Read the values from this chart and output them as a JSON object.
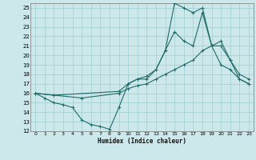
{
  "xlabel": "Humidex (Indice chaleur)",
  "bg_color": "#cce8ea",
  "line_color": "#1e6b6b",
  "grid_color": "#9ecdd0",
  "xlim": [
    -0.5,
    23.5
  ],
  "ylim": [
    12,
    25.5
  ],
  "xticks": [
    0,
    1,
    2,
    3,
    4,
    5,
    6,
    7,
    8,
    9,
    10,
    11,
    12,
    13,
    14,
    15,
    16,
    17,
    18,
    19,
    20,
    21,
    22,
    23
  ],
  "yticks": [
    12,
    13,
    14,
    15,
    16,
    17,
    18,
    19,
    20,
    21,
    22,
    23,
    24,
    25
  ],
  "line1_x": [
    0,
    1,
    2,
    3,
    4,
    5,
    6,
    7,
    8,
    9,
    10,
    11,
    12,
    13,
    14,
    15,
    16,
    17,
    18,
    19,
    20,
    21,
    22,
    23
  ],
  "line1_y": [
    16.0,
    15.5,
    15.0,
    14.8,
    14.5,
    13.2,
    12.7,
    12.5,
    12.2,
    14.5,
    17.0,
    17.5,
    17.5,
    18.5,
    20.5,
    25.5,
    25.0,
    24.5,
    25.0,
    21.0,
    19.0,
    18.5,
    17.5,
    17.0
  ],
  "line2_x": [
    0,
    2,
    9,
    10,
    11,
    12,
    13,
    14,
    15,
    16,
    17,
    18,
    19,
    20,
    21,
    22,
    23
  ],
  "line2_y": [
    16.0,
    15.8,
    16.2,
    17.0,
    17.5,
    17.8,
    18.5,
    20.5,
    22.5,
    21.5,
    21.0,
    24.5,
    21.0,
    21.0,
    19.5,
    18.0,
    17.5
  ],
  "line3_x": [
    0,
    2,
    5,
    9,
    10,
    11,
    12,
    13,
    14,
    15,
    16,
    17,
    18,
    19,
    20,
    21,
    22,
    23
  ],
  "line3_y": [
    16.0,
    15.8,
    15.5,
    16.0,
    16.5,
    16.8,
    17.0,
    17.5,
    18.0,
    18.5,
    19.0,
    19.5,
    20.5,
    21.0,
    21.5,
    19.5,
    17.5,
    17.0
  ]
}
